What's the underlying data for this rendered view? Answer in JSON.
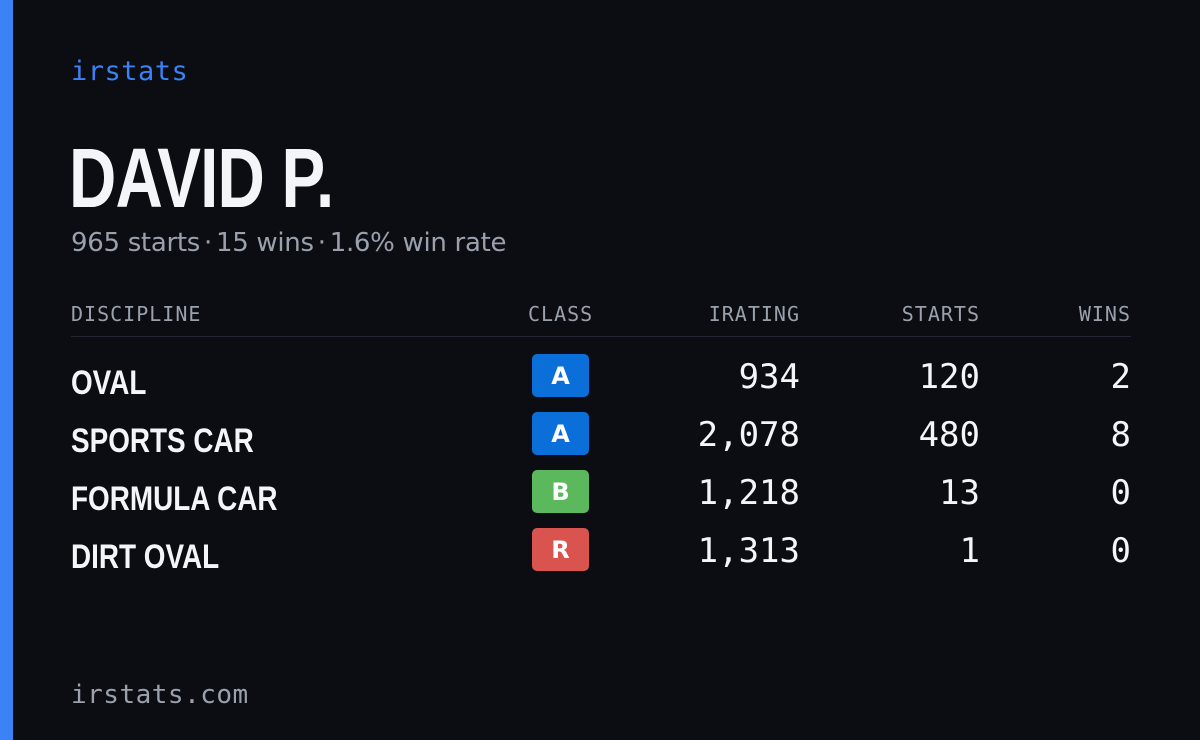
{
  "brand": "irstats",
  "driver": {
    "name": "DAVID P.",
    "summary": {
      "starts": "965 starts",
      "wins": "15 wins",
      "win_rate": "1.6% win rate",
      "separator": "·"
    }
  },
  "table": {
    "headers": {
      "discipline": "DISCIPLINE",
      "class": "CLASS",
      "irating": "IRATING",
      "starts": "STARTS",
      "wins": "WINS"
    },
    "rows": [
      {
        "discipline": "OVAL",
        "class": "A",
        "class_color": "#0a6fd8",
        "irating": "934",
        "starts": "120",
        "wins": "2"
      },
      {
        "discipline": "SPORTS CAR",
        "class": "A",
        "class_color": "#0a6fd8",
        "irating": "2,078",
        "starts": "480",
        "wins": "8"
      },
      {
        "discipline": "FORMULA CAR",
        "class": "B",
        "class_color": "#5cb85c",
        "irating": "1,218",
        "starts": "13",
        "wins": "0"
      },
      {
        "discipline": "DIRT OVAL",
        "class": "R",
        "class_color": "#d9534f",
        "irating": "1,313",
        "starts": "1",
        "wins": "0"
      }
    ]
  },
  "footer": "irstats.com",
  "colors": {
    "accent": "#3b82f6",
    "background": "#0b0d12"
  }
}
